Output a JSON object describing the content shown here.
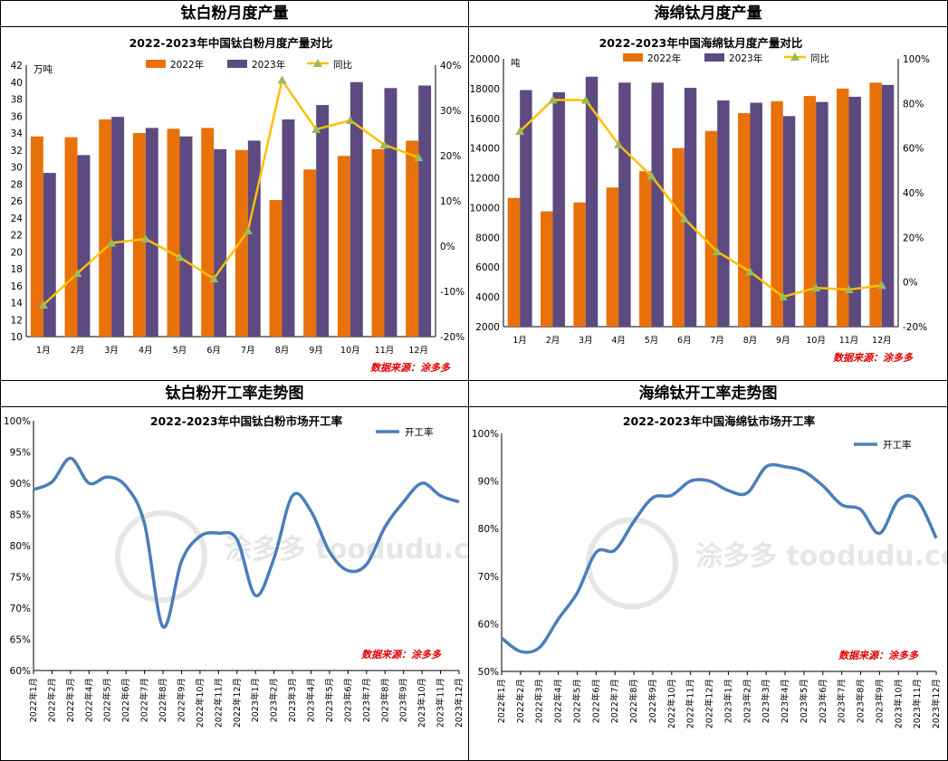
{
  "panels": [
    {
      "header": "钛白粉月度产量"
    },
    {
      "header": "海绵钛月度产量"
    },
    {
      "header": "钛白粉开工率走势图"
    },
    {
      "header": "海绵钛开工率走势图"
    }
  ],
  "colors": {
    "y2022": "#e8710a",
    "y2023": "#5d4a80",
    "yoy": "#ffc000",
    "yoy_marker": "#9bbb59",
    "rate": "#4a7ebb",
    "source": "#e00000"
  },
  "chart_data": [
    {
      "type": "bar",
      "title": "2022-2023年中国钛白粉月度产量对比",
      "ylabel": "万吨",
      "categories": [
        "1月",
        "2月",
        "3月",
        "4月",
        "5月",
        "6月",
        "7月",
        "8月",
        "9月",
        "10月",
        "11月",
        "12月"
      ],
      "series": [
        {
          "name": "2022年",
          "values": [
            33.6,
            33.5,
            35.6,
            34.0,
            34.5,
            34.6,
            32.0,
            26.1,
            29.7,
            31.3,
            32.1,
            33.1
          ]
        },
        {
          "name": "2023年",
          "values": [
            29.3,
            31.4,
            35.9,
            34.6,
            33.6,
            32.1,
            33.1,
            35.6,
            37.3,
            40.0,
            39.3,
            39.6
          ]
        },
        {
          "name": "同比",
          "axis": "right",
          "values": [
            -13,
            -6,
            0.7,
            1.6,
            -2.5,
            -7.2,
            3.4,
            36.7,
            25.8,
            27.8,
            22.4,
            19.6
          ]
        }
      ],
      "ylim": [
        10,
        42
      ],
      "yticks": [
        "10",
        "12",
        "14",
        "16",
        "18",
        "20",
        "22",
        "24",
        "26",
        "28",
        "30",
        "32",
        "34",
        "36",
        "38",
        "40",
        "42"
      ],
      "y2lim": [
        -20,
        40
      ],
      "y2ticks": [
        "-20%",
        "-10%",
        "0%",
        "10%",
        "20%",
        "30%",
        "40%"
      ],
      "legend": [
        "2022年",
        "2023年",
        "同比"
      ],
      "source": "数据来源：涂多多"
    },
    {
      "type": "bar",
      "title": "2022-2023年中国海绵钛月度产量对比",
      "ylabel": "吨",
      "categories": [
        "1月",
        "2月",
        "3月",
        "4月",
        "5月",
        "6月",
        "7月",
        "8月",
        "9月",
        "10月",
        "11月",
        "12月"
      ],
      "series": [
        {
          "name": "2022年",
          "values": [
            10650,
            9750,
            10350,
            11350,
            12450,
            14000,
            15150,
            16350,
            17150,
            17500,
            18000,
            18400
          ]
        },
        {
          "name": "2023年",
          "values": [
            17900,
            17750,
            18800,
            18400,
            18400,
            18050,
            17200,
            17050,
            16150,
            17100,
            17450,
            18250
          ]
        },
        {
          "name": "同比",
          "axis": "right",
          "values": [
            67.5,
            81.6,
            81.5,
            61.6,
            47.5,
            28.4,
            13.6,
            4.6,
            -6.6,
            -2.6,
            -3.4,
            -1.5
          ]
        }
      ],
      "ylim": [
        2000,
        20000
      ],
      "yticks": [
        "2000",
        "4000",
        "6000",
        "8000",
        "10000",
        "12000",
        "14000",
        "16000",
        "18000",
        "20000"
      ],
      "y2lim": [
        -20,
        100
      ],
      "y2ticks": [
        "-20%",
        "0%",
        "20%",
        "40%",
        "60%",
        "80%",
        "100%"
      ],
      "legend": [
        "2022年",
        "2023年",
        "同比"
      ],
      "source": "数据来源：涂多多"
    },
    {
      "type": "line",
      "title": "2022-2023年中国钛白粉市场开工率",
      "x": [
        "2022年1月",
        "2022年2月",
        "2022年3月",
        "2022年4月",
        "2022年5月",
        "2022年6月",
        "2022年7月",
        "2022年8月",
        "2022年9月",
        "2022年10月",
        "2022年11月",
        "2022年12月",
        "2023年1月",
        "2023年2月",
        "2023年3月",
        "2023年4月",
        "2023年5月",
        "2023年6月",
        "2023年7月",
        "2023年8月",
        "2023年9月",
        "2023年10月",
        "2023年11月",
        "2023年12月"
      ],
      "series": [
        {
          "name": "开工率",
          "values": [
            89.0,
            90.2,
            94.0,
            90.0,
            91.0,
            89.5,
            83.5,
            67.0,
            77.5,
            81.5,
            82.0,
            81.0,
            72.0,
            78.0,
            88.0,
            85.5,
            79.0,
            76.0,
            77.0,
            83.0,
            87.0,
            90.0,
            88.0,
            87.0
          ]
        }
      ],
      "ylim": [
        60,
        100
      ],
      "yticks": [
        "60%",
        "65%",
        "70%",
        "75%",
        "80%",
        "85%",
        "90%",
        "95%",
        "100%"
      ],
      "legend": [
        "开工率"
      ],
      "source": "数据来源：涂多多",
      "watermark": "涂多多 toodudu.com"
    },
    {
      "type": "line",
      "title": "2022-2023年中国海绵钛市场开工率",
      "x": [
        "2022年1月",
        "2022年2月",
        "2022年3月",
        "2022年4月",
        "2022年5月",
        "2022年6月",
        "2022年7月",
        "2022年8月",
        "2022年9月",
        "2022年10月",
        "2022年11月",
        "2022年12月",
        "2023年1月",
        "2023年2月",
        "2023年3月",
        "2023年4月",
        "2023年5月",
        "2023年6月",
        "2023年7月",
        "2023年8月",
        "2023年9月",
        "2023年10月",
        "2023年11月",
        "2023年12月"
      ],
      "series": [
        {
          "name": "开工率",
          "values": [
            57.0,
            54.2,
            55.0,
            61.0,
            66.5,
            75.0,
            75.5,
            81.5,
            86.5,
            87.0,
            90.0,
            90.0,
            88.0,
            87.5,
            93.0,
            93.0,
            92.0,
            89.0,
            85.0,
            84.0,
            79.0,
            86.0,
            86.0,
            78.0
          ]
        }
      ],
      "ylim": [
        50,
        100
      ],
      "yticks": [
        "50%",
        "60%",
        "70%",
        "80%",
        "90%",
        "100%"
      ],
      "legend": [
        "开工率"
      ],
      "source": "数据来源：涂多多",
      "watermark": "涂多多 toodudu.com"
    }
  ]
}
